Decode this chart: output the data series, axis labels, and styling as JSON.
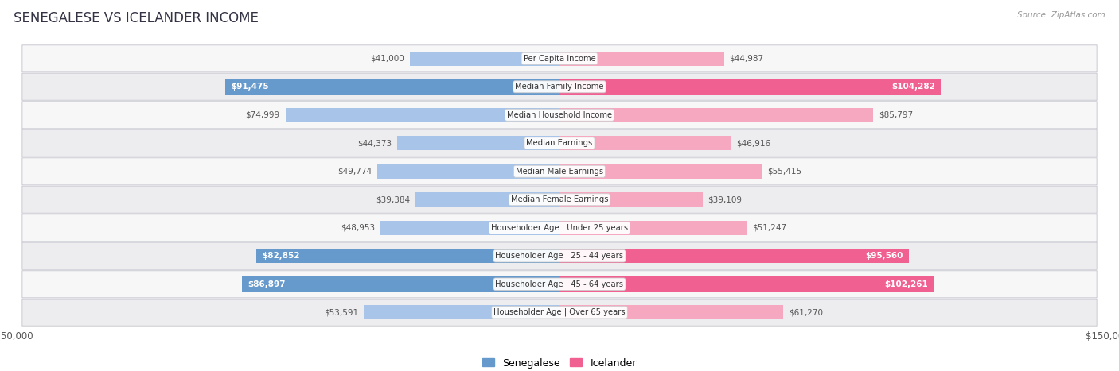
{
  "title": "SENEGALESE VS ICELANDER INCOME",
  "source": "Source: ZipAtlas.com",
  "categories": [
    "Per Capita Income",
    "Median Family Income",
    "Median Household Income",
    "Median Earnings",
    "Median Male Earnings",
    "Median Female Earnings",
    "Householder Age | Under 25 years",
    "Householder Age | 25 - 44 years",
    "Householder Age | 45 - 64 years",
    "Householder Age | Over 65 years"
  ],
  "senegalese": [
    41000,
    91475,
    74999,
    44373,
    49774,
    39384,
    48953,
    82852,
    86897,
    53591
  ],
  "icelander": [
    44987,
    104282,
    85797,
    46916,
    55415,
    39109,
    51247,
    95560,
    102261,
    61270
  ],
  "senegalese_labels": [
    "$41,000",
    "$91,475",
    "$74,999",
    "$44,373",
    "$49,774",
    "$39,384",
    "$48,953",
    "$82,852",
    "$86,897",
    "$53,591"
  ],
  "icelander_labels": [
    "$44,987",
    "$104,282",
    "$85,797",
    "$46,916",
    "$55,415",
    "$39,109",
    "$51,247",
    "$95,560",
    "$102,261",
    "$61,270"
  ],
  "senegalese_color_light": "#a8c4e8",
  "senegalese_color_dark": "#6699cc",
  "icelander_color_light": "#f5a8c0",
  "icelander_color_dark": "#f06090",
  "max_value": 150000,
  "row_bg_even": "#f7f7f8",
  "row_bg_odd": "#ededef",
  "label_white": "#ffffff",
  "label_dark": "#555555",
  "dark_rows": [
    1,
    7,
    8
  ],
  "medium_rows": [
    2
  ]
}
